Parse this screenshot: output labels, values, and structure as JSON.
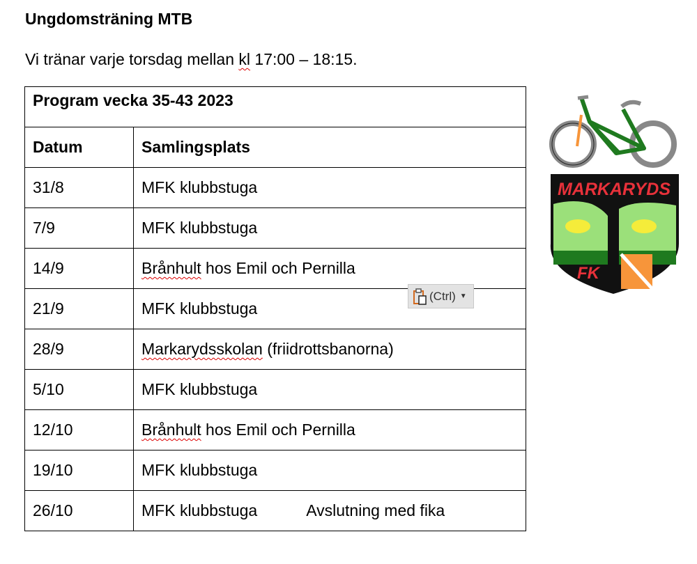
{
  "document": {
    "heading": "Ungdomsträning MTB",
    "intro_before": "Vi tränar varje torsdag mellan ",
    "intro_flagged": "kl",
    "intro_after": " 17:00 – 18:15."
  },
  "table": {
    "title": "Program vecka 35-43 2023",
    "headers": [
      "Datum",
      "Samlingsplats"
    ],
    "rows": [
      {
        "date": "31/8",
        "place": "MFK klubbstuga",
        "note": ""
      },
      {
        "date": "7/9",
        "place": "MFK klubbstuga",
        "note": ""
      },
      {
        "date": "14/9",
        "place_flagged": "Brånhult",
        "place_rest": " hos Emil och Pernilla",
        "note": ""
      },
      {
        "date": "21/9",
        "place": "MFK klubbstuga",
        "note": ""
      },
      {
        "date": "28/9",
        "place_flagged": "Markarydsskolan",
        "place_rest": " (friidrottsbanorna)",
        "note": ""
      },
      {
        "date": "5/10",
        "place": "MFK klubbstuga",
        "note": ""
      },
      {
        "date": "12/10",
        "place_flagged": "Brånhult",
        "place_rest": " hos Emil och Pernilla",
        "note": ""
      },
      {
        "date": "19/10",
        "place": "MFK klubbstuga",
        "note": ""
      },
      {
        "date": "26/10",
        "place": "MFK klubbstuga",
        "note": "Avslutning med fika"
      }
    ]
  },
  "paste_options": {
    "label": "(Ctrl)",
    "icon": "clipboard-icon"
  },
  "logo": {
    "text_top": "MARKARYDS",
    "text_bottom": "FK"
  },
  "colors": {
    "spellcheck": "#dd0000",
    "logo_red": "#e8313a",
    "logo_green": "#1f7a1f",
    "logo_lightgreen": "#9be07a",
    "logo_orange": "#f7953a"
  }
}
